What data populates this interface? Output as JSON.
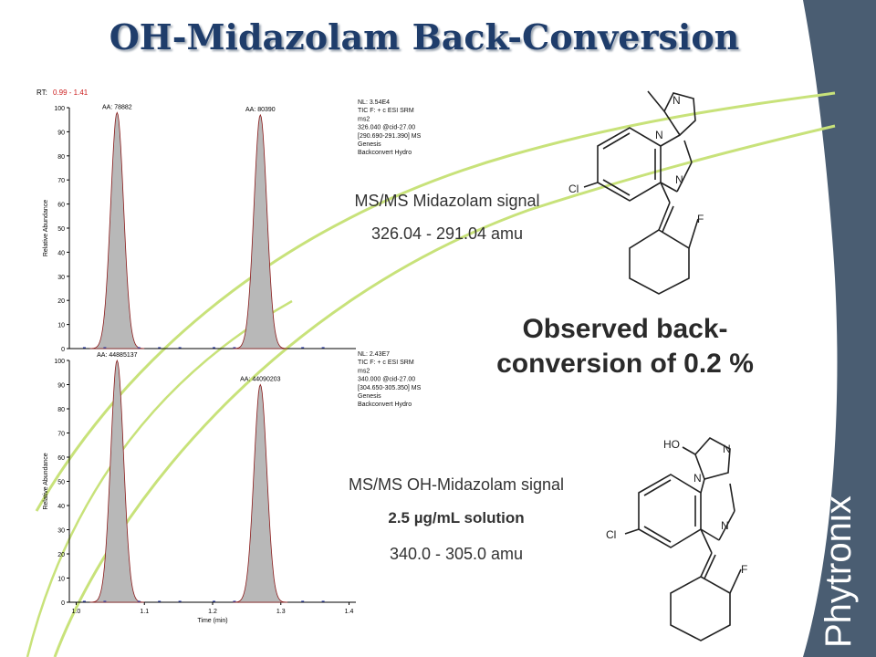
{
  "slide": {
    "title": "OH-Midazolam Back-Conversion",
    "observed": "Observed back-conversion of 0.2 %",
    "brand": "Phytronix"
  },
  "colors": {
    "title": "#1f3d6b",
    "side_band": "#4a5d72",
    "swoosh": "#c8e27a",
    "peak_fill": "#b8b8b8",
    "peak_edge": "#8a1a1a",
    "rt_range": "#cc1f1f"
  },
  "top_panel": {
    "rt_label": "RT:",
    "rt_range": "0.99 - 1.41",
    "info_lines": [
      "NL: 3.54E4",
      "TIC F: + c ESI SRM",
      "ms2",
      "326.040 @cid-27.00",
      "[290.690-291.390]  MS",
      " Genesis",
      "Backconvert Hydro"
    ],
    "caption_1": "MS/MS Midazolam signal",
    "caption_2": "326.04 - 291.04 amu"
  },
  "bottom_panel": {
    "info_lines": [
      "NL: 2.43E7",
      "TIC F: + c ESI SRM",
      "ms2",
      "340.000 @cid-27.00",
      "[304.650-305.350]  MS",
      " Genesis",
      "Backconvert Hydro"
    ],
    "caption_1": "MS/MS OH-Midazolam signal",
    "caption_2": "2.5 µg/mL solution",
    "caption_3": "340.0 - 305.0 amu"
  },
  "chart_data": [
    {
      "type": "line",
      "title": "",
      "xlabel": "",
      "ylabel": "Relative Abundance",
      "xlim": [
        0.99,
        1.41
      ],
      "ylim": [
        0,
        100
      ],
      "yticks": [
        0,
        10,
        20,
        30,
        40,
        50,
        60,
        70,
        80,
        90,
        100
      ],
      "peaks": [
        {
          "rt": 1.06,
          "height": 98,
          "area_label": "AA: 78882"
        },
        {
          "rt": 1.27,
          "height": 97,
          "area_label": "AA: 80390"
        }
      ]
    },
    {
      "type": "line",
      "title": "",
      "xlabel": "Time (min)",
      "ylabel": "Relative Abundance",
      "xlim": [
        0.99,
        1.41
      ],
      "ylim": [
        0,
        100
      ],
      "yticks": [
        0,
        10,
        20,
        30,
        40,
        50,
        60,
        70,
        80,
        90,
        100
      ],
      "xticks": [
        1.0,
        1.1,
        1.2,
        1.3,
        1.4
      ],
      "peaks": [
        {
          "rt": 1.06,
          "height": 100,
          "area_label": "AA: 44885137"
        },
        {
          "rt": 1.27,
          "height": 90,
          "area_label": "AA: 44090203"
        }
      ]
    }
  ],
  "molecules": {
    "top": {
      "atoms": [
        "N",
        "N",
        "N",
        "Cl",
        "F"
      ]
    },
    "bottom": {
      "atoms": [
        "HO",
        "N",
        "N",
        "N",
        "Cl",
        "F"
      ]
    }
  }
}
